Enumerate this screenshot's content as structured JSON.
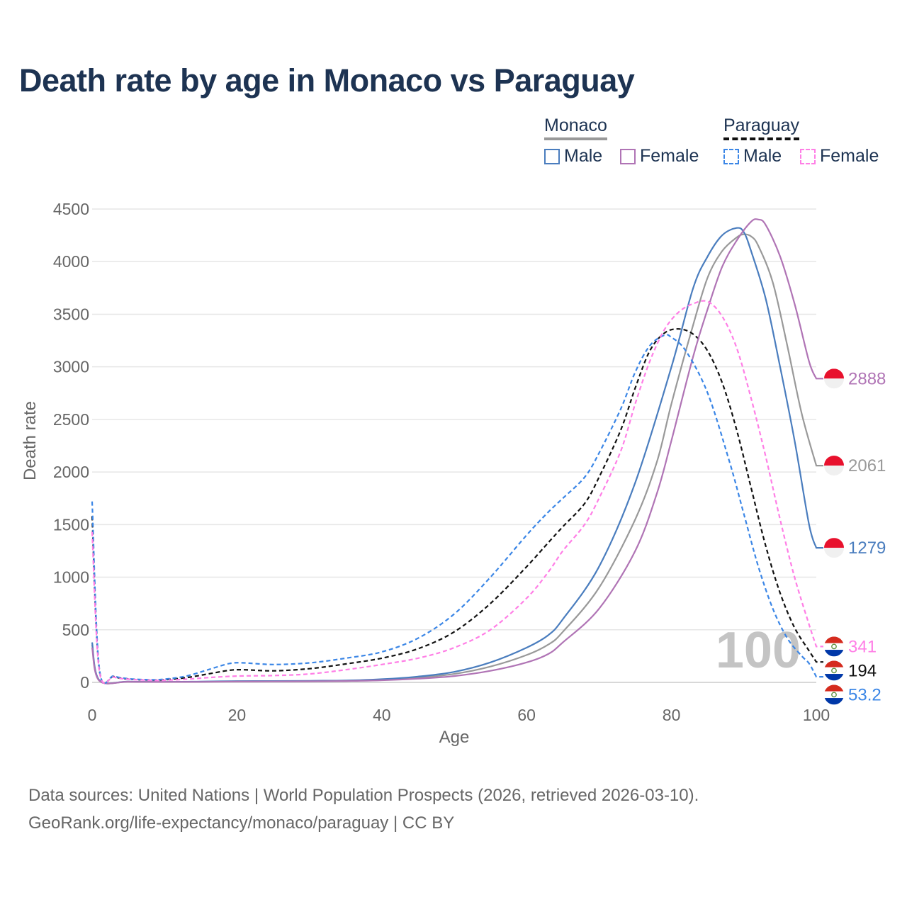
{
  "title": "Death rate by age in Monaco vs Paraguay",
  "legend": {
    "groups": [
      {
        "country": "Monaco",
        "style": "solid",
        "underline_color": "#999999",
        "items": [
          {
            "label": "Male",
            "color": "#4a7dbe"
          },
          {
            "label": "Female",
            "color": "#b074b5"
          }
        ]
      },
      {
        "country": "Paraguay",
        "style": "dashed",
        "underline_color": "#111111",
        "items": [
          {
            "label": "Male",
            "color": "#3b86e6"
          },
          {
            "label": "Female",
            "color": "#ff7fe6"
          }
        ]
      }
    ]
  },
  "source": {
    "line1": "Data sources: United Nations | World Population Prospects (2026, retrieved 2026-03-10).",
    "line2": "GeoRank.org/life-expectancy/monaco/paraguay | CC BY"
  },
  "chart_data": {
    "type": "line",
    "xlabel": "Age",
    "ylabel": "Death rate",
    "xlim": [
      0,
      100
    ],
    "ylim": [
      0,
      4500
    ],
    "xticks": [
      0,
      20,
      40,
      60,
      80,
      100
    ],
    "yticks": [
      0,
      500,
      1000,
      1500,
      2000,
      2500,
      3000,
      3500,
      4000,
      4500
    ],
    "grid": true,
    "watermark": "100",
    "series": [
      {
        "name": "Monaco Male",
        "country": "Monaco",
        "sex": "Male",
        "color": "#4a7dbe",
        "dash": "solid",
        "end_label": "1279",
        "flag": "monaco",
        "points": [
          [
            0,
            380
          ],
          [
            1,
            20
          ],
          [
            5,
            8
          ],
          [
            10,
            5
          ],
          [
            15,
            8
          ],
          [
            20,
            12
          ],
          [
            25,
            13
          ],
          [
            30,
            15
          ],
          [
            35,
            18
          ],
          [
            40,
            30
          ],
          [
            45,
            55
          ],
          [
            50,
            100
          ],
          [
            55,
            190
          ],
          [
            60,
            330
          ],
          [
            63,
            450
          ],
          [
            65,
            600
          ],
          [
            70,
            1100
          ],
          [
            75,
            1900
          ],
          [
            80,
            3000
          ],
          [
            83,
            3750
          ],
          [
            85,
            4050
          ],
          [
            87,
            4250
          ],
          [
            89,
            4320
          ],
          [
            90,
            4280
          ],
          [
            91,
            4100
          ],
          [
            93,
            3650
          ],
          [
            95,
            3000
          ],
          [
            97,
            2300
          ],
          [
            99,
            1500
          ],
          [
            100,
            1279
          ]
        ]
      },
      {
        "name": "Monaco Female",
        "country": "Monaco",
        "sex": "Female",
        "color": "#b074b5",
        "dash": "solid",
        "end_label": "2888",
        "flag": "monaco",
        "points": [
          [
            0,
            330
          ],
          [
            1,
            15
          ],
          [
            5,
            6
          ],
          [
            10,
            4
          ],
          [
            15,
            5
          ],
          [
            20,
            8
          ],
          [
            25,
            9
          ],
          [
            30,
            10
          ],
          [
            35,
            13
          ],
          [
            40,
            20
          ],
          [
            45,
            35
          ],
          [
            50,
            60
          ],
          [
            55,
            110
          ],
          [
            60,
            190
          ],
          [
            63,
            270
          ],
          [
            65,
            380
          ],
          [
            70,
            700
          ],
          [
            75,
            1250
          ],
          [
            78,
            1800
          ],
          [
            80,
            2300
          ],
          [
            83,
            3100
          ],
          [
            85,
            3550
          ],
          [
            87,
            3950
          ],
          [
            89,
            4200
          ],
          [
            91,
            4380
          ],
          [
            92,
            4400
          ],
          [
            93,
            4350
          ],
          [
            95,
            4050
          ],
          [
            97,
            3600
          ],
          [
            99,
            3050
          ],
          [
            100,
            2888
          ]
        ]
      },
      {
        "name": "Monaco Both",
        "country": "Monaco",
        "sex": "Both",
        "color": "#999999",
        "dash": "solid",
        "end_label": "2061",
        "flag": "monaco",
        "points": [
          [
            0,
            360
          ],
          [
            1,
            18
          ],
          [
            5,
            7
          ],
          [
            10,
            5
          ],
          [
            15,
            6
          ],
          [
            20,
            10
          ],
          [
            25,
            11
          ],
          [
            30,
            12
          ],
          [
            35,
            15
          ],
          [
            40,
            25
          ],
          [
            45,
            45
          ],
          [
            50,
            80
          ],
          [
            55,
            150
          ],
          [
            60,
            260
          ],
          [
            63,
            360
          ],
          [
            65,
            480
          ],
          [
            70,
            900
          ],
          [
            75,
            1550
          ],
          [
            78,
            2100
          ],
          [
            80,
            2650
          ],
          [
            83,
            3400
          ],
          [
            85,
            3850
          ],
          [
            87,
            4100
          ],
          [
            89,
            4230
          ],
          [
            90,
            4260
          ],
          [
            91,
            4240
          ],
          [
            92,
            4150
          ],
          [
            94,
            3800
          ],
          [
            96,
            3200
          ],
          [
            98,
            2550
          ],
          [
            100,
            2061
          ]
        ]
      },
      {
        "name": "Paraguay Male",
        "country": "Paraguay",
        "sex": "Male",
        "color": "#3b86e6",
        "dash": "dashed",
        "end_label": "53.2",
        "flag": "paraguay",
        "points": [
          [
            0,
            1720
          ],
          [
            1,
            130
          ],
          [
            3,
            60
          ],
          [
            5,
            35
          ],
          [
            8,
            25
          ],
          [
            10,
            30
          ],
          [
            13,
            60
          ],
          [
            16,
            120
          ],
          [
            19,
            180
          ],
          [
            21,
            185
          ],
          [
            25,
            170
          ],
          [
            30,
            185
          ],
          [
            35,
            230
          ],
          [
            40,
            290
          ],
          [
            45,
            420
          ],
          [
            50,
            650
          ],
          [
            55,
            1000
          ],
          [
            60,
            1400
          ],
          [
            63,
            1620
          ],
          [
            65,
            1750
          ],
          [
            68,
            1950
          ],
          [
            70,
            2180
          ],
          [
            73,
            2600
          ],
          [
            75,
            2950
          ],
          [
            77,
            3200
          ],
          [
            79,
            3300
          ],
          [
            80,
            3280
          ],
          [
            82,
            3150
          ],
          [
            85,
            2750
          ],
          [
            88,
            2100
          ],
          [
            90,
            1600
          ],
          [
            92,
            1100
          ],
          [
            94,
            700
          ],
          [
            96,
            420
          ],
          [
            98,
            250
          ],
          [
            99,
            180
          ],
          [
            100,
            53.2
          ]
        ]
      },
      {
        "name": "Paraguay Female",
        "country": "Paraguay",
        "sex": "Female",
        "color": "#ff7fe6",
        "dash": "dashed",
        "end_label": "341",
        "flag": "paraguay",
        "points": [
          [
            0,
            1430
          ],
          [
            1,
            110
          ],
          [
            3,
            50
          ],
          [
            5,
            30
          ],
          [
            8,
            20
          ],
          [
            10,
            20
          ],
          [
            13,
            30
          ],
          [
            16,
            45
          ],
          [
            20,
            60
          ],
          [
            25,
            65
          ],
          [
            30,
            80
          ],
          [
            35,
            120
          ],
          [
            40,
            170
          ],
          [
            45,
            230
          ],
          [
            50,
            330
          ],
          [
            55,
            500
          ],
          [
            60,
            800
          ],
          [
            63,
            1050
          ],
          [
            65,
            1250
          ],
          [
            68,
            1500
          ],
          [
            70,
            1750
          ],
          [
            73,
            2200
          ],
          [
            75,
            2650
          ],
          [
            77,
            3050
          ],
          [
            79,
            3350
          ],
          [
            81,
            3520
          ],
          [
            83,
            3600
          ],
          [
            85,
            3620
          ],
          [
            87,
            3480
          ],
          [
            89,
            3180
          ],
          [
            91,
            2700
          ],
          [
            93,
            2150
          ],
          [
            95,
            1550
          ],
          [
            97,
            1000
          ],
          [
            99,
            550
          ],
          [
            100,
            341
          ]
        ]
      },
      {
        "name": "Paraguay Both",
        "country": "Paraguay",
        "sex": "Both",
        "color": "#111111",
        "dash": "dashed",
        "end_label": "194",
        "flag": "paraguay",
        "points": [
          [
            0,
            1580
          ],
          [
            1,
            120
          ],
          [
            3,
            55
          ],
          [
            5,
            32
          ],
          [
            8,
            22
          ],
          [
            10,
            25
          ],
          [
            13,
            45
          ],
          [
            16,
            80
          ],
          [
            19,
            115
          ],
          [
            21,
            120
          ],
          [
            25,
            110
          ],
          [
            30,
            130
          ],
          [
            35,
            175
          ],
          [
            40,
            230
          ],
          [
            45,
            320
          ],
          [
            50,
            480
          ],
          [
            55,
            750
          ],
          [
            60,
            1100
          ],
          [
            63,
            1330
          ],
          [
            65,
            1480
          ],
          [
            68,
            1700
          ],
          [
            70,
            1950
          ],
          [
            73,
            2400
          ],
          [
            75,
            2800
          ],
          [
            77,
            3150
          ],
          [
            79,
            3320
          ],
          [
            81,
            3360
          ],
          [
            83,
            3310
          ],
          [
            85,
            3150
          ],
          [
            87,
            2850
          ],
          [
            89,
            2400
          ],
          [
            91,
            1850
          ],
          [
            93,
            1300
          ],
          [
            95,
            850
          ],
          [
            97,
            520
          ],
          [
            99,
            300
          ],
          [
            100,
            194
          ]
        ]
      }
    ]
  }
}
